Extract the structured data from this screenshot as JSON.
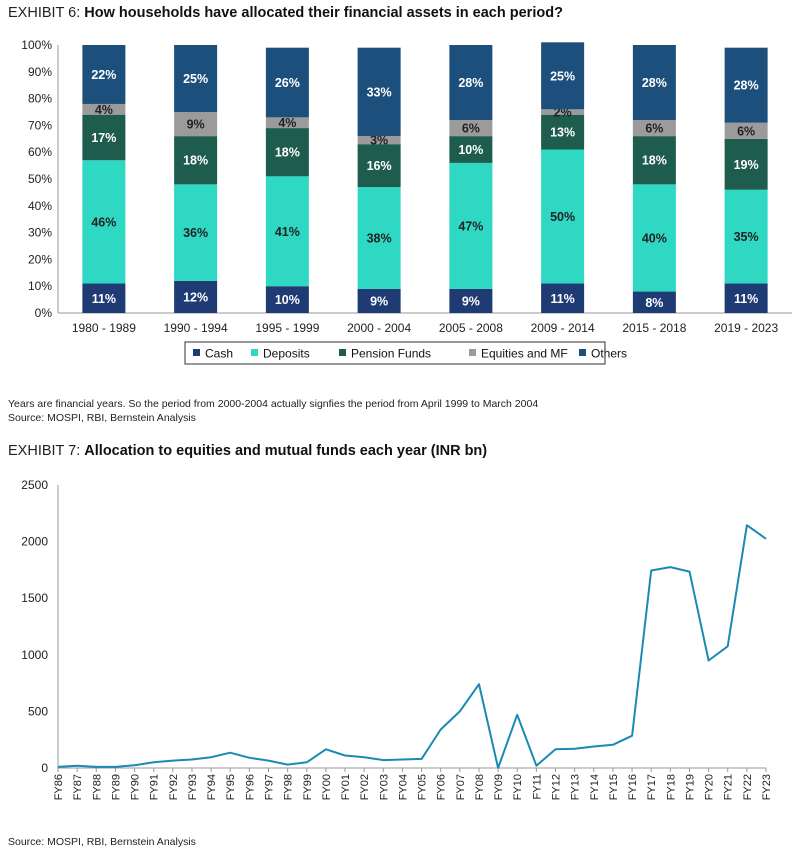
{
  "exhibit6": {
    "label": "EXHIBIT 6:",
    "title": "How households have allocated their financial assets in each period?",
    "note": "Years are financial years. So the period from 2000-2004 actually signfies the period from April 1999 to March 2004",
    "source": "Source: MOSPI, RBI, Bernstein Analysis"
  },
  "exhibit7": {
    "label": "EXHIBIT 7:",
    "title": "Allocation to equities and mutual funds each year (INR bn)",
    "source": "Source: MOSPI, RBI, Bernstein Analysis"
  },
  "chart_data": [
    {
      "type": "bar",
      "stacked": true,
      "categories": [
        "1980 - 1989",
        "1990 - 1994",
        "1995 - 1999",
        "2000 - 2004",
        "2005 - 2008",
        "2009 - 2014",
        "2015 - 2018",
        "2019 - 2023"
      ],
      "y_ticks": [
        "0%",
        "10%",
        "20%",
        "30%",
        "40%",
        "50%",
        "60%",
        "70%",
        "80%",
        "90%",
        "100%"
      ],
      "ylim": [
        0,
        100
      ],
      "legend_position": "bottom",
      "series": [
        {
          "name": "Cash",
          "color": "#1f3b73",
          "label_color": "#ffffff",
          "values": [
            11,
            12,
            10,
            9,
            9,
            11,
            8,
            11
          ]
        },
        {
          "name": "Deposits",
          "color": "#2ed8c3",
          "label_color": "#222222",
          "values": [
            46,
            36,
            41,
            38,
            47,
            50,
            40,
            35
          ]
        },
        {
          "name": "Pension Funds",
          "color": "#1e5c4d",
          "label_color": "#ffffff",
          "values": [
            17,
            18,
            18,
            16,
            10,
            13,
            18,
            19
          ]
        },
        {
          "name": "Equities and MF",
          "color": "#9b9b9b",
          "label_color": "#222222",
          "values": [
            4,
            9,
            4,
            3,
            6,
            2,
            6,
            6
          ]
        },
        {
          "name": "Others",
          "color": "#1d4f7c",
          "label_color": "#ffffff",
          "values": [
            22,
            25,
            26,
            33,
            28,
            25,
            28,
            28
          ]
        }
      ],
      "labels": [
        [
          "11%",
          "12%",
          "10%",
          "9%",
          "9%",
          "11%",
          "8%",
          "11%"
        ],
        [
          "46%",
          "36%",
          "41%",
          "38%",
          "47%",
          "50%",
          "40%",
          "35%"
        ],
        [
          "17%",
          "18%",
          "18%",
          "16%",
          "10%",
          "13%",
          "18%",
          "19%"
        ],
        [
          "4%",
          "9%",
          "4%",
          "3%",
          "6%",
          "2%",
          "6%",
          "6%"
        ],
        [
          "22%",
          "25%",
          "26%",
          "33%",
          "28%",
          "25%",
          "28%",
          "28%"
        ]
      ]
    },
    {
      "type": "line",
      "color": "#1a8ab5",
      "ylim": [
        0,
        2500
      ],
      "y_ticks": [
        0,
        500,
        1000,
        1500,
        2000,
        2500
      ],
      "x": [
        "FY86",
        "FY87",
        "FY88",
        "FY89",
        "FY90",
        "FY91",
        "FY92",
        "FY93",
        "FY94",
        "FY95",
        "FY96",
        "FY97",
        "FY98",
        "FY99",
        "FY00",
        "FY01",
        "FY02",
        "FY03",
        "FY04",
        "FY05",
        "FY06",
        "FY07",
        "FY08",
        "FY09",
        "FY10",
        "FY11",
        "FY12",
        "FY13",
        "FY14",
        "FY15",
        "FY16",
        "FY17",
        "FY18",
        "FY19",
        "FY20",
        "FY21",
        "FY22",
        "FY23"
      ],
      "values": [
        10,
        20,
        10,
        10,
        25,
        50,
        65,
        75,
        95,
        135,
        90,
        65,
        30,
        50,
        165,
        110,
        95,
        70,
        75,
        80,
        340,
        500,
        740,
        0,
        470,
        20,
        165,
        170,
        190,
        205,
        285,
        1745,
        1775,
        1735,
        950,
        1075,
        2145,
        2025
      ]
    }
  ]
}
